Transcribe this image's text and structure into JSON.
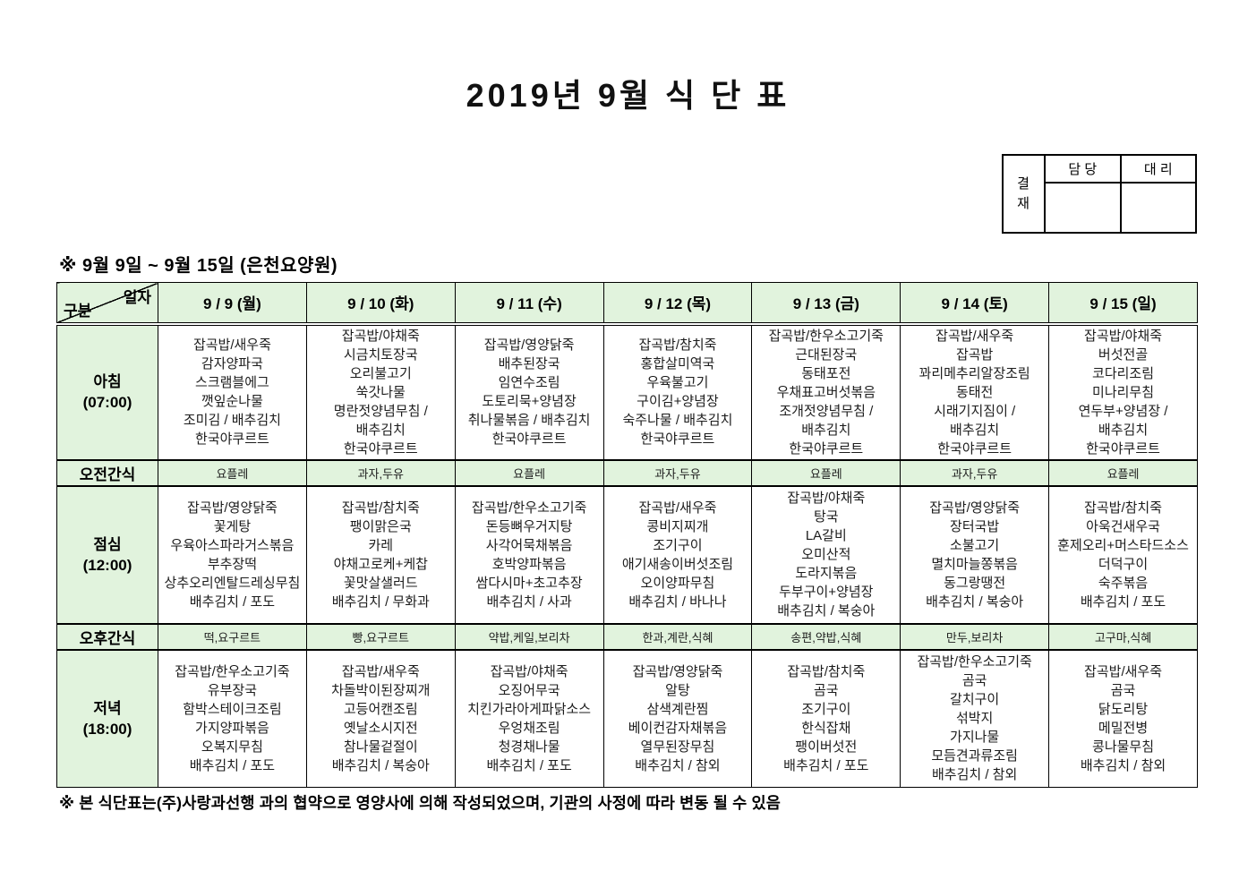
{
  "title": "2019년 9월 식 단 표",
  "approval": {
    "stamp_label": "결\n재",
    "columns": [
      "담 당",
      "대 리"
    ]
  },
  "subtitle": "※ 9월 9일 ~ 9월 15일 (은천요양원)",
  "table": {
    "corner": {
      "top_right": "일자",
      "bottom_left": "구분"
    },
    "day_headers": [
      "9 / 9 (월)",
      "9 / 10 (화)",
      "9 / 11 (수)",
      "9 / 12 (목)",
      "9 / 13 (금)",
      "9 / 14 (토)",
      "9 / 15 (일)"
    ],
    "row_labels": {
      "breakfast": "아침\n(07:00)",
      "am_snack": "오전간식",
      "lunch": "점심\n(12:00)",
      "pm_snack": "오후간식",
      "dinner": "저녁\n(18:00)"
    },
    "breakfast": [
      "잡곡밥/새우죽\n감자양파국\n스크램블에그\n깻잎순나물\n조미김 / 배추김치\n한국야쿠르트",
      "잡곡밥/야채죽\n시금치토장국\n오리불고기\n쑥갓나물\n명란젓양념무침 /\n배추김치\n한국야쿠르트",
      "잡곡밥/영양닭죽\n배추된장국\n임연수조림\n도토리묵+양념장\n취나물볶음 / 배추김치\n한국야쿠르트",
      "잡곡밥/참치죽\n홍합살미역국\n우육불고기\n구이김+양념장\n숙주나물 / 배추김치\n한국야쿠르트",
      "잡곡밥/한우소고기죽\n근대된장국\n동태포전\n우채표고버섯볶음\n조개젓양념무침 /\n배추김치\n한국야쿠르트",
      "잡곡밥/새우죽\n잡곡밥\n꽈리메추리알장조림\n동태전\n시래기지짐이 /\n배추김치\n한국야쿠르트",
      "잡곡밥/야채죽\n버섯전골\n코다리조림\n미나리무침\n연두부+양념장 /\n배추김치\n한국야쿠르트"
    ],
    "am_snack": [
      "요플레",
      "과자,두유",
      "요플레",
      "과자,두유",
      "요플레",
      "과자,두유",
      "요플레"
    ],
    "lunch": [
      "잡곡밥/영양닭죽\n꽃게탕\n우육아스파라거스볶음\n부추장떡\n상추오리엔탈드레싱무침\n배추김치 / 포도",
      "잡곡밥/참치죽\n팽이맑은국\n카레\n야채고로케+케찹\n꽃맛살샐러드\n배추김치 / 무화과",
      "잡곡밥/한우소고기죽\n돈등뼈우거지탕\n사각어묵채볶음\n호박양파볶음\n쌈다시마+초고추장\n배추김치 / 사과",
      "잡곡밥/새우죽\n콩비지찌개\n조기구이\n애기새송이버섯조림\n오이양파무침\n배추김치 / 바나나",
      "잡곡밥/야채죽\n탕국\nLA갈비\n오미산적\n도라지볶음\n두부구이+양념장\n배추김치 / 복숭아",
      "잡곡밥/영양닭죽\n장터국밥\n소불고기\n멸치마늘쫑볶음\n동그랑땡전\n배추김치 / 복숭아",
      "잡곡밥/참치죽\n아욱건새우국\n훈제오리+머스타드소스\n더덕구이\n숙주볶음\n배추김치 / 포도"
    ],
    "pm_snack": [
      "떡,요구르트",
      "빵,요구르트",
      "약밥,케일,보리차",
      "한과,계란,식혜",
      "송편,약밥,식혜",
      "만두,보리차",
      "고구마,식혜"
    ],
    "dinner": [
      "잡곡밥/한우소고기죽\n유부장국\n함박스테이크조림\n가지양파볶음\n오복지무침\n배추김치 / 포도",
      "잡곡밥/새우죽\n차돌박이된장찌개\n고등어캔조림\n옛날소시지전\n참나물겉절이\n배추김치 / 복숭아",
      "잡곡밥/야채죽\n오징어무국\n치킨가라아게파닭소스\n우엉채조림\n청경채나물\n배추김치 / 포도",
      "잡곡밥/영양닭죽\n알탕\n삼색계란찜\n베이컨감자채볶음\n열무된장무침\n배추김치 / 참외",
      "잡곡밥/참치죽\n곰국\n조기구이\n한식잡채\n팽이버섯전\n배추김치 / 포도",
      "잡곡밥/한우소고기죽\n곰국\n갈치구이\n섞박지\n가지나물\n모듬견과류조림\n배추김치 / 참외",
      "잡곡밥/새우죽\n곰국\n닭도리탕\n메밀전병\n콩나물무침\n배추김치 / 참외"
    ]
  },
  "footnote": "※ 본 식단표는(주)사랑과선행 과의 협약으로 영양사에 의해 작성되었으며, 기관의 사정에 따라 변동 될 수 있음",
  "colors": {
    "cell_green": "#e1f3dd",
    "border": "#000000",
    "text": "#000000"
  }
}
